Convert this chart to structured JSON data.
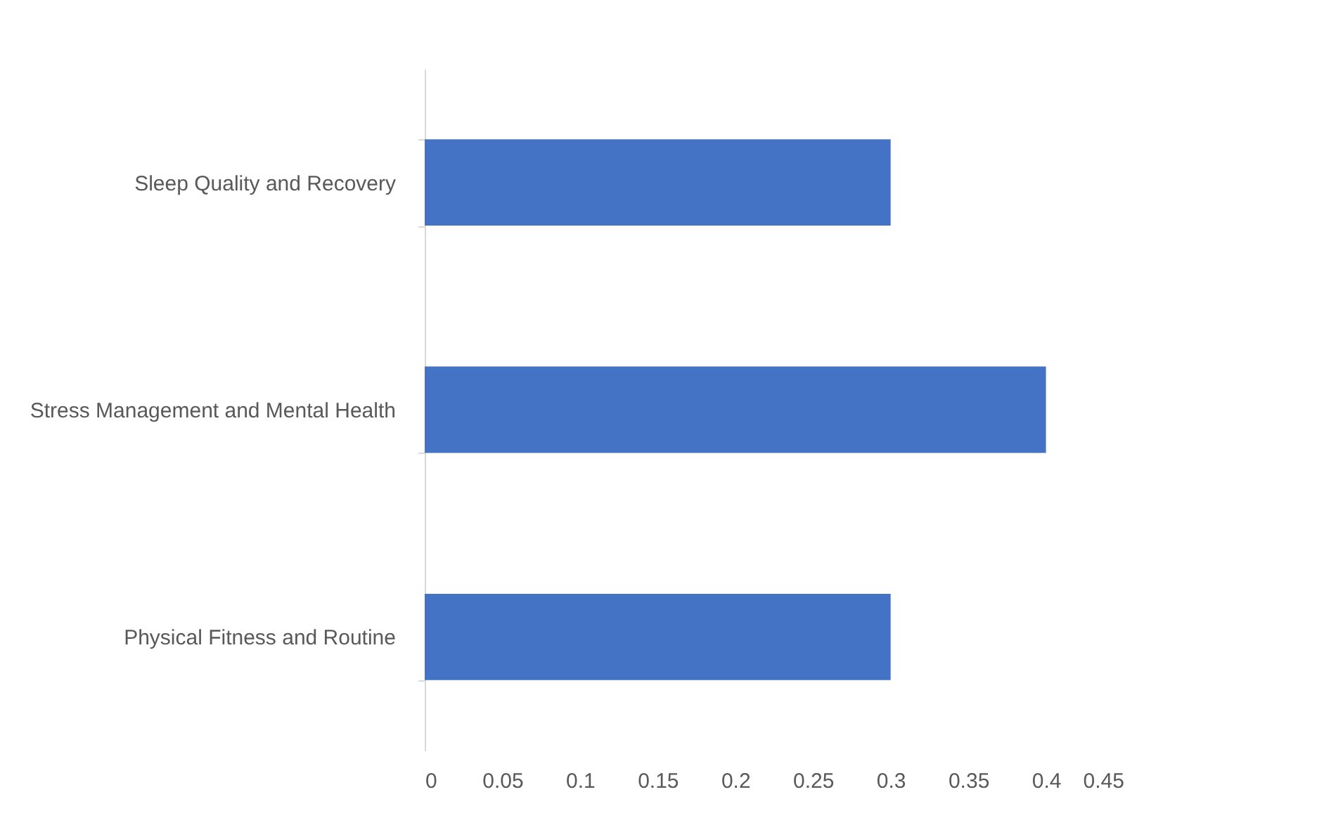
{
  "chart_data": {
    "type": "bar",
    "orientation": "horizontal",
    "categories": [
      "Sleep Quality and Recovery",
      "Stress Management and Mental Health",
      "Physical Fitness and Routine"
    ],
    "values": [
      0.3,
      0.4,
      0.3
    ],
    "color": "#4472c4",
    "xlim": [
      0,
      0.45
    ],
    "xticks": [
      0,
      0.05,
      0.1,
      0.15,
      0.2,
      0.25,
      0.3,
      0.35,
      0.4,
      0.45
    ],
    "grid": false
  }
}
